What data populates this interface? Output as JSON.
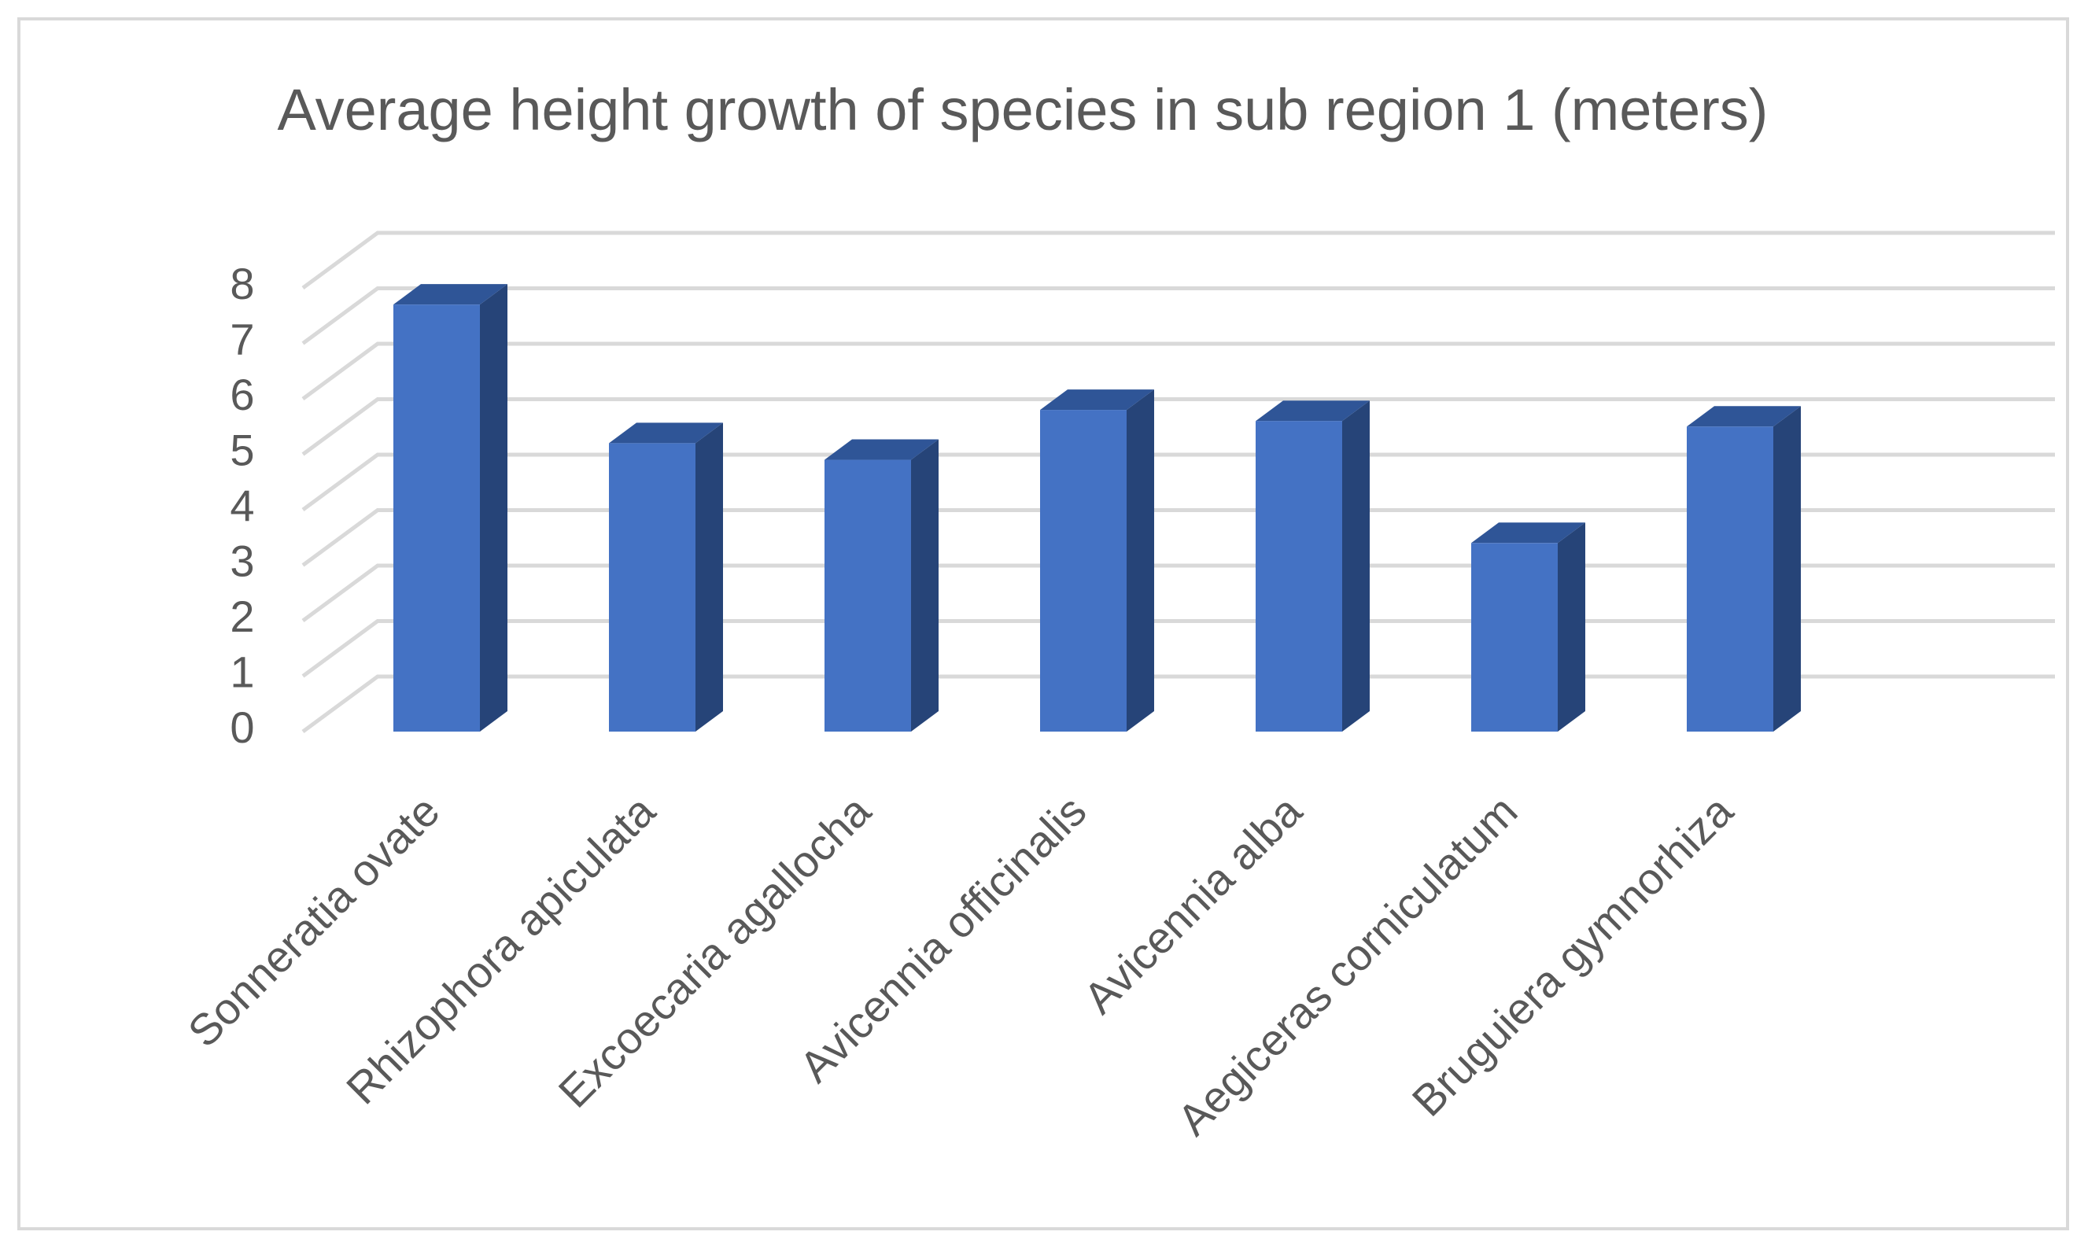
{
  "chart_data": {
    "type": "bar",
    "style": "3d-column",
    "title": "Average height growth of species in sub region 1 (meters)",
    "categories": [
      "Sonneratia ovate",
      "Rhizophora apiculata",
      "Excoecaria agallocha",
      "Avicennia officinalis",
      "Avicennia alba",
      "Aegiceras corniculatum",
      "Bruguiera gymnorhiza"
    ],
    "values": [
      7.7,
      5.2,
      4.9,
      5.8,
      5.6,
      3.4,
      5.5
    ],
    "ylim": [
      0,
      8
    ],
    "yticks": [
      "0",
      "1",
      "2",
      "3",
      "4",
      "5",
      "6",
      "7",
      "8"
    ],
    "grid": true,
    "legend": "none",
    "colors": {
      "bar_front": "#4472C4",
      "bar_side": "#264478",
      "bar_top": "#2F5597",
      "grid": "#d9d9d9",
      "text": "#595959"
    }
  }
}
